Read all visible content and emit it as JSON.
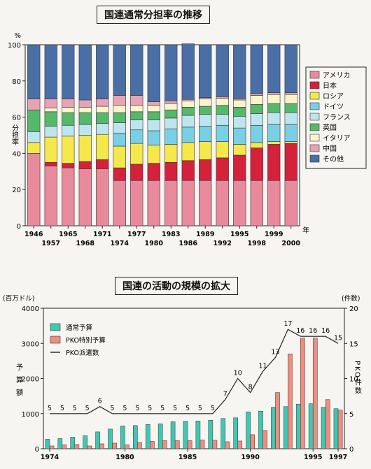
{
  "chart_data": [
    {
      "type": "bar",
      "stacked": true,
      "title": "国連通常分担率の推移",
      "ylabel": "分担率",
      "yunit": "%",
      "xunit": "年",
      "ylim": [
        0,
        100
      ],
      "yticks": [
        0,
        20,
        40,
        60,
        80,
        100
      ],
      "categories": [
        "1946",
        "1957",
        "1965",
        "1968",
        "1971",
        "1974",
        "1977",
        "1980",
        "1983",
        "1986",
        "1989",
        "1992",
        "1995",
        "1998",
        "1999",
        "2000"
      ],
      "tick_labels_row1": [
        "1946",
        "1965",
        "1971",
        "1977",
        "1983",
        "1989",
        "1995",
        "1999"
      ],
      "tick_labels_row2": [
        "1957",
        "1968",
        "1974",
        "1980",
        "1986",
        "1992",
        "1998",
        "2000"
      ],
      "legend_position": "right",
      "series": [
        {
          "name": "アメリカ",
          "color": "#e98a9c",
          "values": [
            40,
            33,
            32,
            31.5,
            31.5,
            25,
            25,
            25,
            25,
            25,
            25,
            25,
            25,
            25,
            25,
            25
          ]
        },
        {
          "name": "日本",
          "color": "#d4213c",
          "values": [
            0,
            2,
            2.5,
            4,
            5,
            7,
            9,
            9.5,
            10,
            11,
            11.5,
            12.5,
            14,
            18,
            20,
            20.5
          ]
        },
        {
          "name": "ロシア",
          "color": "#f4e84a",
          "values": [
            6,
            14,
            15,
            14.5,
            14,
            12,
            11.5,
            10,
            10,
            10,
            10,
            9,
            6,
            3,
            1.5,
            1
          ]
        },
        {
          "name": "ドイツ",
          "color": "#79cfe4",
          "values": [
            0,
            0,
            0,
            0,
            0,
            7,
            7.5,
            8,
            8.5,
            8.5,
            8.5,
            9,
            9,
            9.5,
            9.5,
            9.5
          ]
        },
        {
          "name": "フランス",
          "color": "#bde5ef",
          "values": [
            6,
            6,
            6,
            6,
            6,
            6,
            5.5,
            6,
            6,
            6.5,
            6.5,
            6,
            6.5,
            6.5,
            6.5,
            6.5
          ]
        },
        {
          "name": "英国",
          "color": "#56b86a",
          "values": [
            12,
            8,
            7,
            6.5,
            6,
            5.5,
            4.5,
            4.5,
            4.5,
            4.5,
            4.5,
            5,
            5,
            5,
            5,
            5
          ]
        },
        {
          "name": "イタリア",
          "color": "#faf4cc",
          "values": [
            0,
            2,
            3,
            3,
            3.5,
            4,
            3.5,
            3.5,
            3.5,
            3.5,
            4,
            4,
            4,
            5,
            5,
            5
          ]
        },
        {
          "name": "中国",
          "color": "#e8a3b3",
          "values": [
            6,
            5,
            4.5,
            4,
            4,
            5.5,
            5.5,
            2,
            1.5,
            0.8,
            0.8,
            0.8,
            0.8,
            1,
            1,
            1
          ]
        },
        {
          "name": "その他",
          "color": "#4a6fa6",
          "values": [
            30,
            30,
            30,
            30.5,
            30,
            28,
            28,
            31.5,
            31,
            30.7,
            29.2,
            28.7,
            29.7,
            27,
            26.5,
            26.5
          ]
        }
      ]
    },
    {
      "type": "bar",
      "title": "国連の活動の規模の拡大",
      "ylabel": "予算額",
      "yunit": "(百万ドル)",
      "ylim": [
        0,
        4000
      ],
      "yticks": [
        0,
        1000,
        2000,
        3000,
        4000
      ],
      "y2label": "PKO件数",
      "y2unit": "(件数)",
      "y2lim": [
        0,
        20
      ],
      "y2ticks": [
        0,
        5,
        10,
        15,
        20
      ],
      "legend_position": "top-left",
      "x": [
        1974,
        1975,
        1976,
        1977,
        1978,
        1979,
        1980,
        1981,
        1982,
        1983,
        1984,
        1985,
        1986,
        1987,
        1988,
        1989,
        1990,
        1991,
        1992,
        1993,
        1994,
        1995,
        1996,
        1997
      ],
      "xtick_labels": [
        "1974",
        "1980",
        "1985",
        "1990",
        "1995",
        "1997"
      ],
      "series": [
        {
          "name": "通常予算",
          "color": "#3fc8b0",
          "type": "bar",
          "values": [
            270,
            290,
            330,
            370,
            480,
            560,
            650,
            660,
            690,
            710,
            770,
            780,
            790,
            810,
            860,
            880,
            1050,
            1070,
            1180,
            1200,
            1270,
            1280,
            1180,
            1140
          ]
        },
        {
          "name": "PKO特別予算",
          "color": "#f08c80",
          "type": "bar",
          "values": [
            80,
            110,
            120,
            80,
            140,
            160,
            110,
            180,
            210,
            230,
            230,
            230,
            250,
            240,
            200,
            220,
            400,
            520,
            1600,
            2700,
            3150,
            3150,
            1400,
            1100
          ]
        },
        {
          "name": "PKO派遣数",
          "color": "#222222",
          "type": "line",
          "axis": "right",
          "values": [
            5,
            5,
            5,
            5,
            6,
            5,
            5,
            5,
            5,
            5,
            5,
            5,
            5,
            5,
            7,
            10,
            8,
            11,
            13,
            17,
            16,
            16,
            16,
            15
          ]
        }
      ]
    }
  ]
}
